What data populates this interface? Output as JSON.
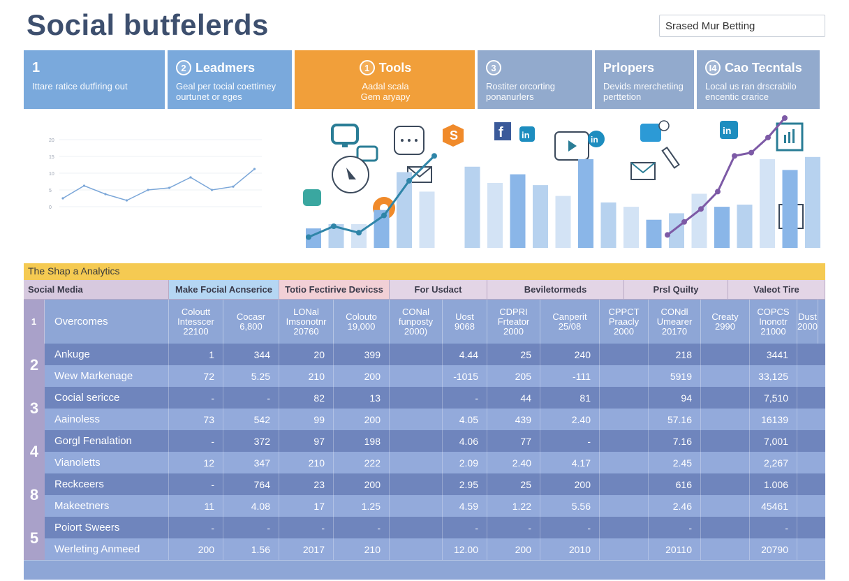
{
  "header": {
    "title": "Social butfelerds",
    "search_value": "Srased Mur Betting"
  },
  "tiles": [
    {
      "num": "1",
      "title": "",
      "desc": "Ittare ratice dutfiring out",
      "color": "#7aa9dc",
      "width": 202,
      "style": "plain"
    },
    {
      "num": "2",
      "title": "Leadmers",
      "desc": "Geal per tocial coettimey\nourtunet or eges",
      "color": "#7aa9dc",
      "width": 178
    },
    {
      "num": "1",
      "title": "Tools",
      "desc": "Aadal scala\nGem aryapy",
      "color": "#f19f3a",
      "width": 258,
      "center": true
    },
    {
      "num": "3",
      "title": "",
      "desc": "Rostiter orcorting\nponanurlers",
      "color": "#92aacd",
      "width": 164
    },
    {
      "num": "",
      "title": "Prlopers",
      "desc": "Devids mrerchetiing\nperttetion",
      "color": "#92aacd",
      "width": 142
    },
    {
      "num": "I4",
      "title": "Cao Tecntals",
      "desc": "Local us ran drscrabilo\nencentic crarice",
      "color": "#92aacd",
      "width": 176
    }
  ],
  "mini_chart": {
    "y_ticks": [
      "20",
      "15",
      "10",
      "5",
      " 0"
    ],
    "points": [
      2,
      5,
      3,
      1.5,
      4,
      4.5,
      7,
      4,
      4.8,
      9
    ]
  },
  "infographic": {
    "bars": [
      18,
      22,
      22,
      35,
      70,
      52,
      0,
      75,
      60,
      68,
      58,
      48,
      82,
      42,
      38,
      26,
      32,
      50,
      38,
      40,
      82,
      72,
      84
    ],
    "trend_a": [
      10,
      20,
      14,
      30,
      62,
      85
    ],
    "trend_b": [
      12,
      24,
      36,
      52,
      85,
      88,
      102,
      120
    ]
  },
  "table": {
    "title": "The Shap a Analytics",
    "headers": [
      "Social Media",
      "Make Focial Acnserice",
      "Totio Fectirive Devicss",
      "For Usdact",
      "Beviletormeds",
      "Prsl Quilty",
      "Valeot Tire"
    ],
    "subheaders": [
      "Overcomes",
      "Coloutt\nIntesscer\n22100",
      "Cocasr\n6,800",
      "LONal\nImsonotnr\n20760",
      "Colouto\n19,000",
      "CONal\nfunposty\n2000)",
      "Uost\n9068",
      "CDPRI\nFrteator\n2000",
      "Canperit\n25/08",
      "CPPCT\nPraacly\n2000",
      "CONdl\nUmearer\n20170",
      "Creaty\n2990",
      "COPCS\nInonotr\n21000",
      "Dust\n2000"
    ],
    "groups": [
      {
        "index": "2",
        "rows": [
          {
            "label": "Ankuge",
            "cells": [
              "1",
              "344",
              "20",
              "399",
              "",
              "4.44",
              "25",
              "240",
              "",
              "218",
              "",
              "3441"
            ]
          },
          {
            "label": "Wew Markenage",
            "cells": [
              "72",
              "5.25",
              "210",
              "200",
              "",
              "-1015",
              "205",
              "-111",
              "",
              "5919",
              "",
              "33,125"
            ]
          }
        ]
      },
      {
        "index": "3",
        "rows": [
          {
            "label": "Cocial sericce",
            "cells": [
              "-",
              "-",
              "82",
              "13",
              "",
              "-",
              "44",
              "81",
              "",
              "94",
              "",
              "7,510"
            ]
          },
          {
            "label": "Aainoless",
            "cells": [
              "73",
              "542",
              "99",
              "200",
              "",
              "4.05",
              "439",
              "2.40",
              "",
              "57.16",
              "",
              "16139"
            ]
          }
        ]
      },
      {
        "index": "4",
        "rows": [
          {
            "label": "Gorgl Fenalation",
            "cells": [
              "-",
              "372",
              "97",
              "198",
              "",
              "4.06",
              "77",
              "-",
              "",
              "7.16",
              "",
              "7,001"
            ]
          },
          {
            "label": "Vianoletts",
            "cells": [
              "12",
              "347",
              "210",
              "222",
              "",
              "2.09",
              "2.40",
              "4.17",
              "",
              "2.45",
              "",
              "2,267"
            ]
          }
        ]
      },
      {
        "index": "8",
        "rows": [
          {
            "label": "Reckceers",
            "cells": [
              "-",
              "764",
              "23",
              "200",
              "",
              "2.95",
              "25",
              "200",
              "",
              "616",
              "",
              "1.006"
            ]
          },
          {
            "label": "Makeetners",
            "cells": [
              "11",
              "4.08",
              "17",
              "1.25",
              "",
              "4.59",
              "1.22",
              "5.56",
              "",
              "2.46",
              "",
              "45461"
            ]
          }
        ]
      },
      {
        "index": "5",
        "rows": [
          {
            "label": "Poiort Sweers",
            "cells": [
              "-",
              "-",
              "-",
              "-",
              "",
              "-",
              "-",
              "-",
              "",
              "-",
              "",
              "-"
            ]
          },
          {
            "label": "Werleting Anmeed",
            "cells": [
              "200",
              "1.56",
              "2017",
              "210",
              "",
              "12.00",
              "200",
              "2010",
              "",
              "20110",
              "",
              "20790"
            ]
          }
        ]
      }
    ]
  }
}
